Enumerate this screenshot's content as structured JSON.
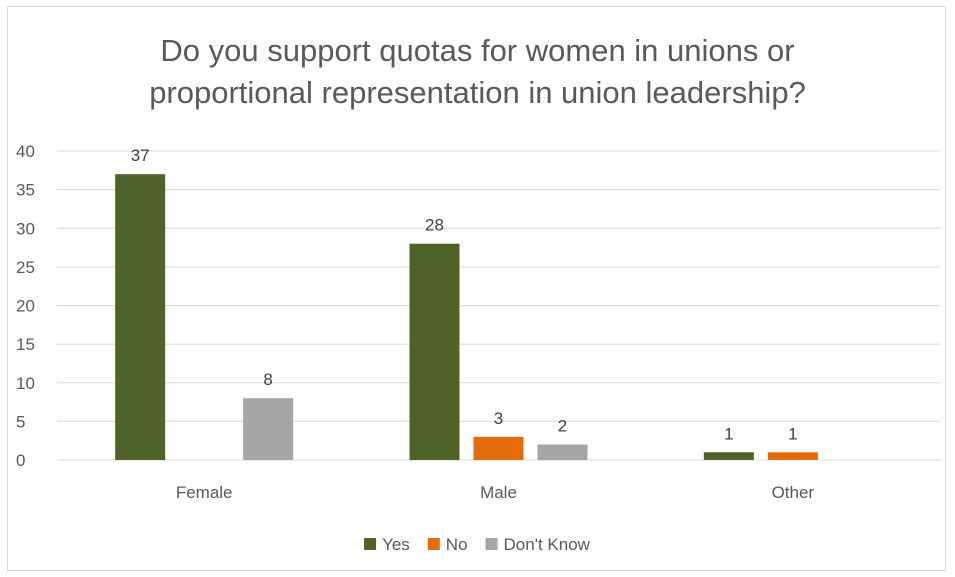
{
  "chart_data": {
    "type": "bar",
    "title": "Do you support quotas for women in unions or proportional representation in union leadership?",
    "title_lines": [
      "Do you support quotas for women in unions or",
      "proportional representation in union leadership?"
    ],
    "categories": [
      "Female",
      "Male",
      "Other"
    ],
    "series": [
      {
        "name": "Yes",
        "color": "#4f6228",
        "values": [
          37,
          28,
          1
        ]
      },
      {
        "name": "No",
        "color": "#e46c0a",
        "values": [
          0,
          3,
          1
        ]
      },
      {
        "name": "Don't Know",
        "color": "#a6a6a6",
        "values": [
          8,
          2,
          0
        ]
      }
    ],
    "ylim": [
      0,
      40
    ],
    "yticks": [
      0,
      5,
      10,
      15,
      20,
      25,
      30,
      35,
      40
    ],
    "grid": true,
    "legend": "bottom",
    "xlabel": "",
    "ylabel": ""
  }
}
